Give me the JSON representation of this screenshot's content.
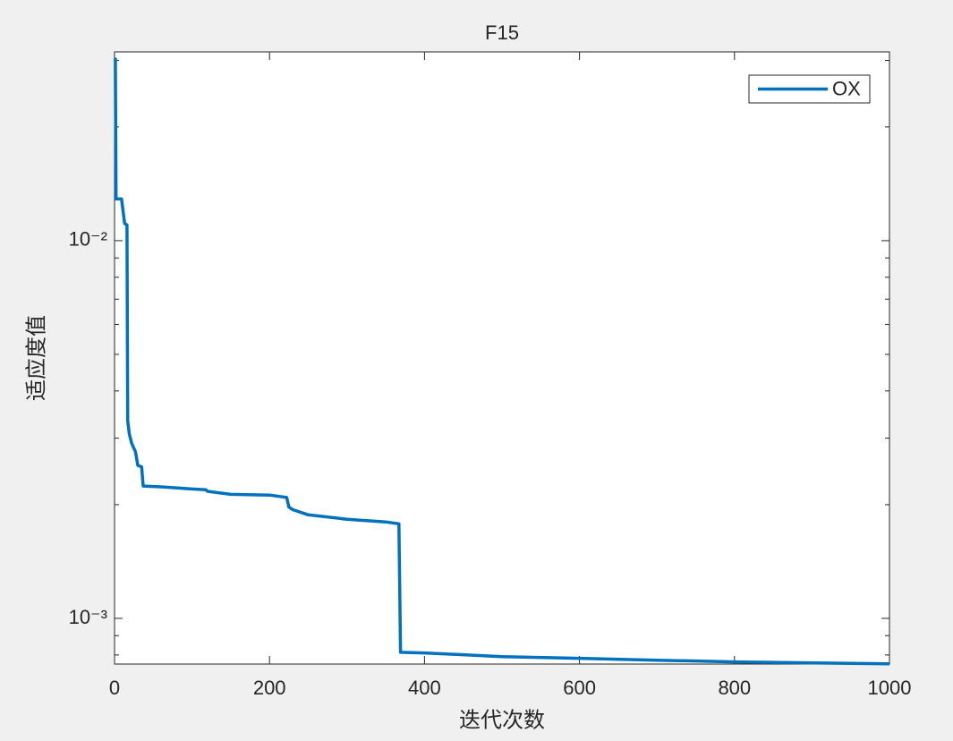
{
  "chart_data": {
    "type": "line",
    "title": "F15",
    "x_label": "迭代次数",
    "y_label": "适应度值",
    "log_y": true,
    "legend_position": "upper right",
    "xlim": [
      0,
      1000
    ],
    "xticks": [
      0,
      200,
      400,
      600,
      800,
      1000
    ],
    "ylim": [
      0.000757,
      0.0316
    ],
    "yticks": [
      {
        "value": 0.001,
        "label": "10⁻³"
      },
      {
        "value": 0.01,
        "label": "10⁻²"
      }
    ],
    "yminorticks": [
      0.0008,
      0.0009,
      0.002,
      0.003,
      0.004,
      0.005,
      0.006,
      0.007,
      0.008,
      0.009,
      0.02,
      0.03
    ],
    "series": [
      {
        "name": "OX",
        "color": "#0072bd",
        "x": [
          1,
          2,
          9,
          13,
          16,
          17,
          19,
          22,
          27,
          30,
          35,
          37,
          60,
          100,
          118,
          120,
          150,
          200,
          222,
          225,
          230,
          250,
          300,
          350,
          367,
          369,
          400,
          450,
          500,
          600,
          700,
          800,
          1000
        ],
        "values": [
          0.0305,
          0.0129,
          0.0129,
          0.0111,
          0.011,
          0.00334,
          0.00308,
          0.00291,
          0.00276,
          0.00254,
          0.00252,
          0.00224,
          0.00223,
          0.0022,
          0.00219,
          0.00217,
          0.00213,
          0.00212,
          0.00209,
          0.00197,
          0.00194,
          0.00188,
          0.00183,
          0.0018,
          0.00178,
          0.000813,
          0.00081,
          0.000801,
          0.000792,
          0.000784,
          0.000775,
          0.000767,
          0.000758
        ]
      }
    ]
  }
}
